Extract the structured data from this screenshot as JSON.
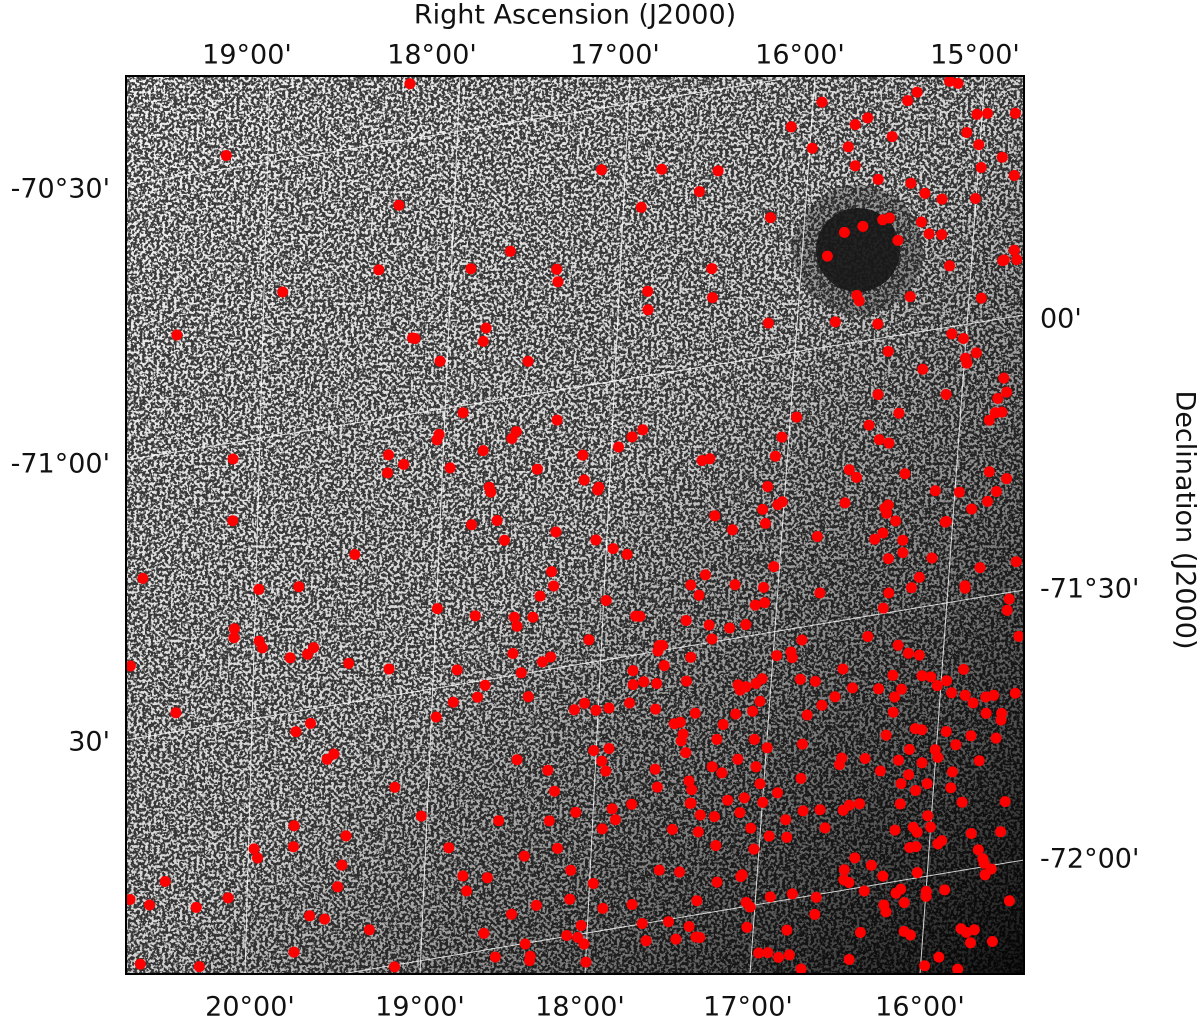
{
  "x_axis_title": "Right Ascension (J2000)",
  "y_axis_title": "Declination (J2000)",
  "top_ticks": [
    "19°00'",
    "18°00'",
    "17°00'",
    "16°00'",
    "15°00'"
  ],
  "bottom_ticks": [
    "20°00'",
    "19°00'",
    "18°00'",
    "17°00'",
    "16°00'"
  ],
  "left_ticks": [
    "-70°30'",
    "-71°00'",
    "30'"
  ],
  "right_ticks": [
    "00'",
    "-71°30'",
    "-72°00'"
  ]
}
